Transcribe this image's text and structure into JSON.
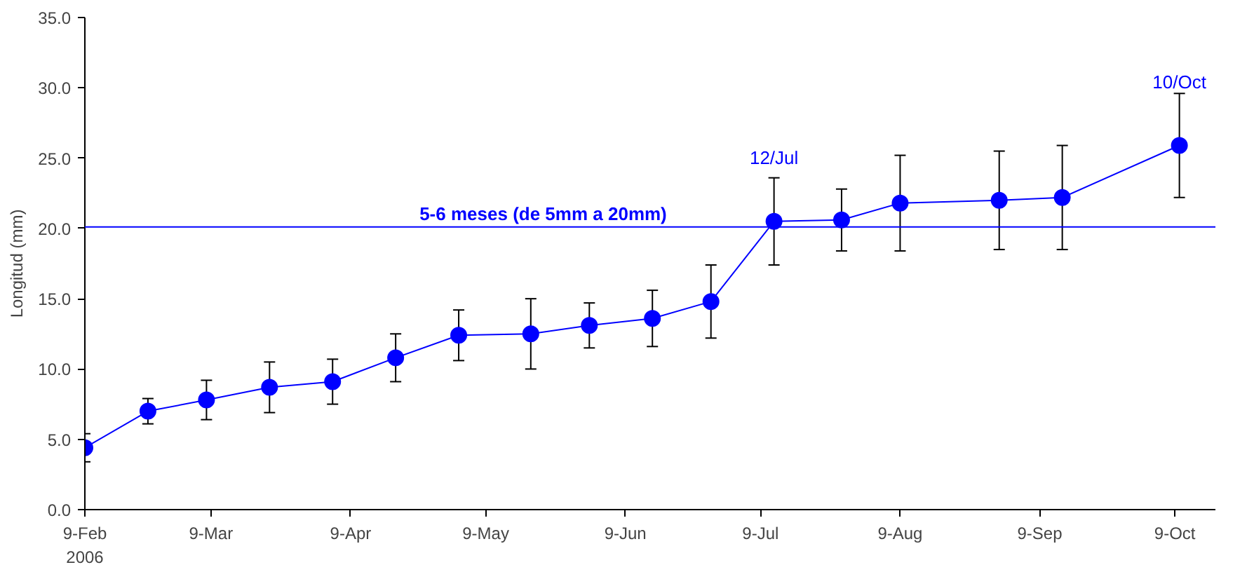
{
  "chart_data": {
    "type": "line",
    "ylabel": "Longitud (mm)",
    "x": [
      "2006-02-09",
      "2006-02-23",
      "2006-03-08",
      "2006-03-22",
      "2006-04-05",
      "2006-04-19",
      "2006-05-03",
      "2006-05-19",
      "2006-06-01",
      "2006-06-15",
      "2006-06-28",
      "2006-07-12",
      "2006-07-27",
      "2006-08-09",
      "2006-08-31",
      "2006-09-14",
      "2006-10-10"
    ],
    "series": [
      {
        "color": "#0000ff",
        "values": [
          4.4,
          7.0,
          7.8,
          8.7,
          9.1,
          10.8,
          12.4,
          12.5,
          13.1,
          13.6,
          14.8,
          20.5,
          20.6,
          21.8,
          22.0,
          22.2,
          25.9
        ],
        "errors": [
          1.0,
          0.9,
          1.4,
          1.8,
          1.6,
          1.7,
          1.8,
          2.5,
          1.6,
          2.0,
          2.6,
          3.1,
          2.2,
          3.4,
          3.5,
          3.7,
          3.7
        ]
      }
    ],
    "xlim": [
      "2006-02-09",
      "2006-10-18"
    ],
    "xticks": [
      {
        "value": "2006-02-09",
        "label": "9-Feb\n2006"
      },
      {
        "value": "2006-03-09",
        "label": "9-Mar"
      },
      {
        "value": "2006-04-09",
        "label": "9-Apr"
      },
      {
        "value": "2006-05-09",
        "label": "9-May"
      },
      {
        "value": "2006-06-09",
        "label": "9-Jun"
      },
      {
        "value": "2006-07-09",
        "label": "9-Jul"
      },
      {
        "value": "2006-08-09",
        "label": "9-Aug"
      },
      {
        "value": "2006-09-09",
        "label": "9-Sep"
      },
      {
        "value": "2006-10-09",
        "label": "9-Oct"
      }
    ],
    "ylim": [
      0,
      35
    ],
    "yticks": [
      {
        "value": 0,
        "label": "0.0"
      },
      {
        "value": 5,
        "label": "5.0"
      },
      {
        "value": 10,
        "label": "10.0"
      },
      {
        "value": 15,
        "label": "15.0"
      },
      {
        "value": 20,
        "label": "20.0"
      },
      {
        "value": 25,
        "label": "25.0"
      },
      {
        "value": 30,
        "label": "30.0"
      },
      {
        "value": 35,
        "label": "35.0"
      }
    ],
    "ref_lines": [
      {
        "axis": "y",
        "value": 20.1,
        "label": "5-6 meses (de 5mm a 20mm)",
        "color": "#0000ff"
      }
    ],
    "annotations": [
      {
        "text": "12/Jul",
        "x": "2006-07-12",
        "y": 20.5
      },
      {
        "text": "10/Oct",
        "x": "2006-10-10",
        "y": 25.9
      }
    ],
    "grid": false,
    "marker": "circle",
    "line_style": "solid"
  }
}
